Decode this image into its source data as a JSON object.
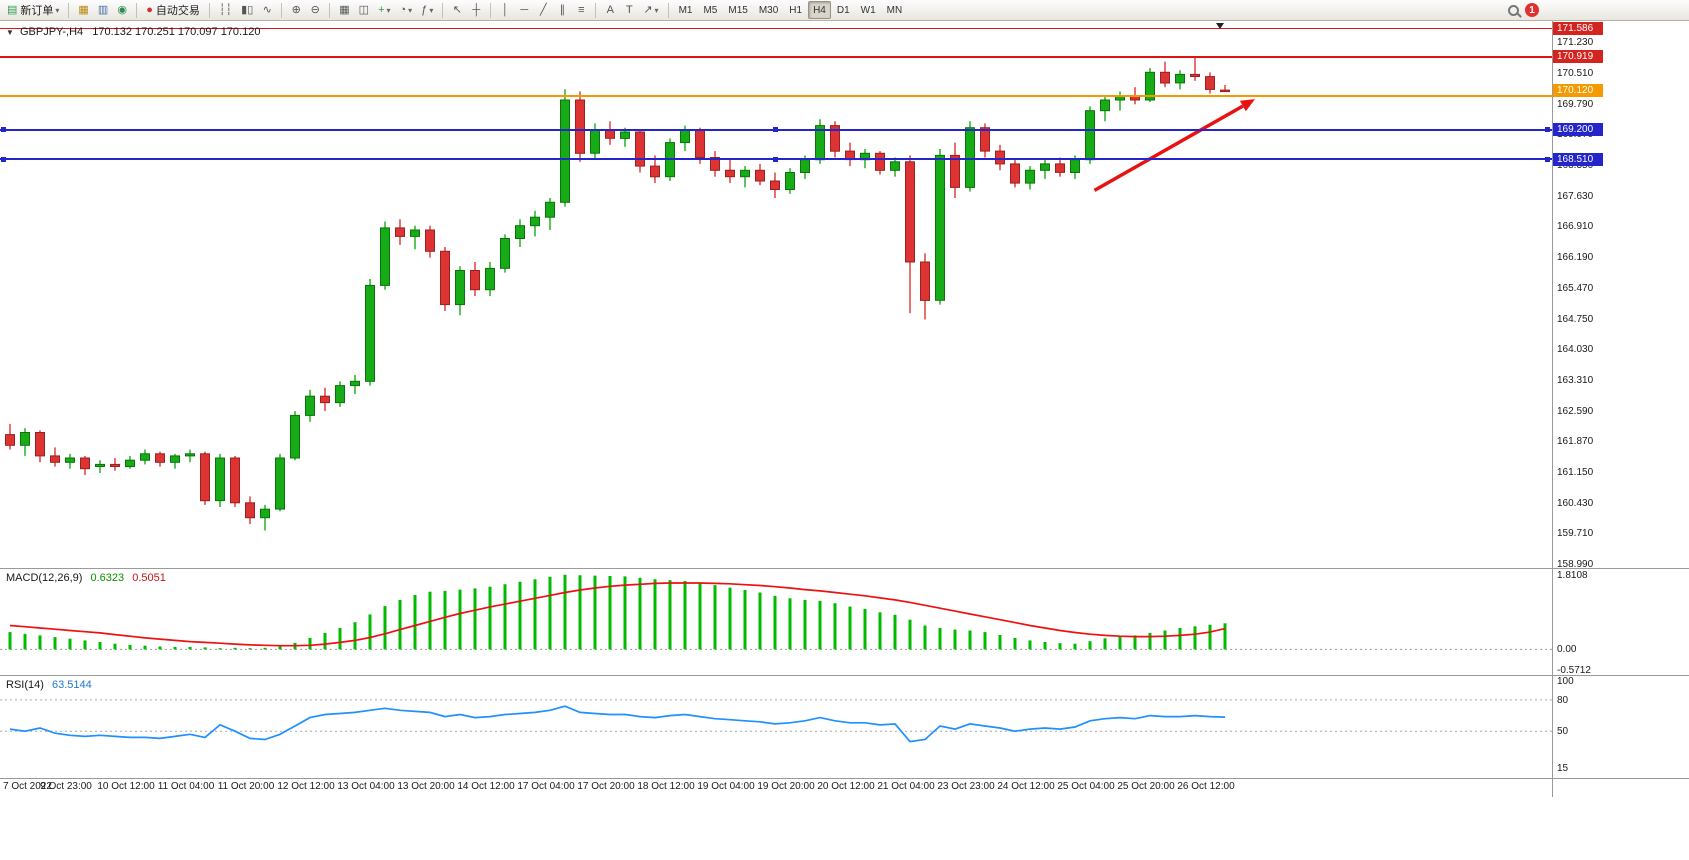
{
  "toolbar": {
    "groups": [
      [
        {
          "name": "new-order",
          "glyph": "▤",
          "glyph_color": "#2e9e4f",
          "label": "新订单",
          "caret": true
        }
      ],
      [
        {
          "name": "charts",
          "glyph": "▦",
          "glyph_color": "#b8860b"
        },
        {
          "name": "print",
          "glyph": "▥",
          "glyph_color": "#4a6fa5"
        },
        {
          "name": "market-watch",
          "glyph": "◉",
          "glyph_color": "#2e8b57"
        }
      ],
      [
        {
          "name": "autotrading",
          "glyph": "●",
          "glyph_color": "#d03030",
          "label": "自动交易"
        }
      ],
      [
        {
          "name": "bar-chart",
          "glyph": "┆┆"
        },
        {
          "name": "candlestick-chart",
          "glyph": "▮▯"
        },
        {
          "name": "line-chart",
          "glyph": "∿"
        }
      ],
      [
        {
          "name": "zoom-in",
          "glyph": "⊕"
        },
        {
          "name": "zoom-out",
          "glyph": "⊖"
        }
      ],
      [
        {
          "name": "tile-windows",
          "glyph": "▦"
        },
        {
          "name": "arrange-charts",
          "glyph": "◫"
        },
        {
          "name": "new-chart",
          "glyph": "+",
          "glyph_color": "#2e9e4f",
          "caret": true
        },
        {
          "name": "chart-period",
          "glyph": "◔",
          "caret": true
        },
        {
          "name": "indicators",
          "glyph": "ƒ",
          "caret": true
        }
      ],
      [
        {
          "name": "cursor",
          "glyph": "↖"
        },
        {
          "name": "crosshair",
          "glyph": "┼"
        }
      ],
      [
        {
          "name": "vertical-line",
          "glyph": "│"
        },
        {
          "name": "horizontal-line",
          "glyph": "─"
        },
        {
          "name": "trendline",
          "glyph": "╱"
        },
        {
          "name": "equidistant-channel",
          "glyph": "∥"
        },
        {
          "name": "fibonacci",
          "glyph": "≡"
        }
      ],
      [
        {
          "name": "text",
          "glyph": "A"
        },
        {
          "name": "text-label",
          "glyph": "T"
        },
        {
          "name": "arrows",
          "glyph": "↗",
          "caret": true
        }
      ]
    ],
    "timeframes": [
      "M1",
      "M5",
      "M15",
      "M30",
      "H1",
      "H4",
      "D1",
      "W1",
      "MN"
    ],
    "active_timeframe": "H4",
    "notification_badge": "1"
  },
  "chart_header": {
    "symbol_period": "GBPJPY-,H4",
    "ohlc_quote": "170.132 170.251 170.097 170.120"
  },
  "indicators": {
    "macd_label": "MACD(12,26,9)",
    "macd_value": "0.6323",
    "macd_signal": "0.5051",
    "rsi_label": "RSI(14)",
    "rsi_value": "63.5144"
  },
  "axes": {
    "price_labels": [
      "171.230",
      "170.510",
      "169.790",
      "169.070",
      "168.350",
      "167.630",
      "166.910",
      "166.190",
      "165.470",
      "164.750",
      "164.030",
      "163.310",
      "162.590",
      "161.870",
      "161.150",
      "160.430",
      "159.710",
      "158.990"
    ],
    "macd_scale_labels": [
      "1.8108",
      "0.00",
      "-0.5712"
    ],
    "rsi_scale_labels": [
      "100",
      "80",
      "50",
      "15"
    ],
    "time_labels": [
      "7 Oct 2022",
      "9 Oct 23:00",
      "10 Oct 12:00",
      "11 Oct 04:00",
      "11 Oct 20:00",
      "12 Oct 12:00",
      "13 Oct 04:00",
      "13 Oct 20:00",
      "14 Oct 12:00",
      "17 Oct 04:00",
      "17 Oct 20:00",
      "18 Oct 12:00",
      "19 Oct 04:00",
      "19 Oct 20:00",
      "20 Oct 12:00",
      "21 Oct 04:00",
      "23 Oct 23:00",
      "24 Oct 12:00",
      "25 Oct 04:00",
      "25 Oct 20:00",
      "26 Oct 12:00"
    ]
  },
  "price_tags": [
    {
      "label": "171.586",
      "price": 171.586,
      "color": "#d42420"
    },
    {
      "label": "170.919",
      "price": 170.919,
      "color": "#d42420"
    },
    {
      "label": "170.120",
      "price": 170.12,
      "color": "#f59a00"
    },
    {
      "label": "169.200",
      "price": 169.2,
      "color": "#2525cc"
    },
    {
      "label": "168.510",
      "price": 168.51,
      "color": "#2525cc"
    }
  ],
  "chart_data": {
    "type": "candlestick",
    "symbol": "GBPJPY-",
    "timeframe": "H4",
    "title": "GBPJPY-,H4 170.132 170.251 170.097 170.120",
    "price_range": [
      158.92,
      171.73
    ],
    "ohlc": [
      [
        162.05,
        162.3,
        161.7,
        161.8
      ],
      [
        161.8,
        162.2,
        161.55,
        162.1
      ],
      [
        162.1,
        162.15,
        161.4,
        161.55
      ],
      [
        161.55,
        161.75,
        161.3,
        161.4
      ],
      [
        161.4,
        161.6,
        161.25,
        161.5
      ],
      [
        161.5,
        161.55,
        161.1,
        161.25
      ],
      [
        161.3,
        161.45,
        161.15,
        161.35
      ],
      [
        161.35,
        161.5,
        161.2,
        161.3
      ],
      [
        161.3,
        161.55,
        161.25,
        161.45
      ],
      [
        161.45,
        161.7,
        161.35,
        161.6
      ],
      [
        161.6,
        161.65,
        161.3,
        161.4
      ],
      [
        161.4,
        161.6,
        161.25,
        161.55
      ],
      [
        161.55,
        161.7,
        161.4,
        161.6
      ],
      [
        161.6,
        161.65,
        160.4,
        160.5
      ],
      [
        160.5,
        161.6,
        160.35,
        161.5
      ],
      [
        161.5,
        161.55,
        160.35,
        160.45
      ],
      [
        160.45,
        160.6,
        159.95,
        160.1
      ],
      [
        160.1,
        160.4,
        159.8,
        160.3
      ],
      [
        160.3,
        161.6,
        160.25,
        161.5
      ],
      [
        161.5,
        162.6,
        161.45,
        162.5
      ],
      [
        162.5,
        163.1,
        162.35,
        162.95
      ],
      [
        162.95,
        163.15,
        162.6,
        162.8
      ],
      [
        162.8,
        163.3,
        162.7,
        163.2
      ],
      [
        163.2,
        163.45,
        163.0,
        163.3
      ],
      [
        163.3,
        165.7,
        163.2,
        165.55
      ],
      [
        165.55,
        167.05,
        165.45,
        166.9
      ],
      [
        166.9,
        167.1,
        166.5,
        166.7
      ],
      [
        166.7,
        166.95,
        166.4,
        166.85
      ],
      [
        166.85,
        166.95,
        166.2,
        166.35
      ],
      [
        166.35,
        166.45,
        164.95,
        165.1
      ],
      [
        165.1,
        166.0,
        164.85,
        165.9
      ],
      [
        165.9,
        166.1,
        165.3,
        165.45
      ],
      [
        165.45,
        166.1,
        165.3,
        165.95
      ],
      [
        165.95,
        166.75,
        165.85,
        166.65
      ],
      [
        166.65,
        167.1,
        166.45,
        166.95
      ],
      [
        166.95,
        167.3,
        166.7,
        167.15
      ],
      [
        167.15,
        167.6,
        166.85,
        167.5
      ],
      [
        167.5,
        170.15,
        167.4,
        169.9
      ],
      [
        169.9,
        170.1,
        168.45,
        168.65
      ],
      [
        168.65,
        169.35,
        168.5,
        169.2
      ],
      [
        169.2,
        169.4,
        168.85,
        169.0
      ],
      [
        169.0,
        169.25,
        168.8,
        169.15
      ],
      [
        169.15,
        169.2,
        168.2,
        168.35
      ],
      [
        168.35,
        168.6,
        167.95,
        168.1
      ],
      [
        168.1,
        169.0,
        168.0,
        168.9
      ],
      [
        168.9,
        169.3,
        168.7,
        169.2
      ],
      [
        169.2,
        169.25,
        168.4,
        168.55
      ],
      [
        168.55,
        168.7,
        168.1,
        168.25
      ],
      [
        168.25,
        168.5,
        167.95,
        168.1
      ],
      [
        168.1,
        168.35,
        167.85,
        168.25
      ],
      [
        168.25,
        168.4,
        167.9,
        168.0
      ],
      [
        168.0,
        168.2,
        167.6,
        167.8
      ],
      [
        167.8,
        168.3,
        167.7,
        168.2
      ],
      [
        168.2,
        168.6,
        168.05,
        168.5
      ],
      [
        168.5,
        169.45,
        168.4,
        169.3
      ],
      [
        169.3,
        169.4,
        168.55,
        168.7
      ],
      [
        168.7,
        168.9,
        168.35,
        168.5
      ],
      [
        168.5,
        168.75,
        168.3,
        168.65
      ],
      [
        168.65,
        168.7,
        168.15,
        168.25
      ],
      [
        168.25,
        168.55,
        168.1,
        168.45
      ],
      [
        168.45,
        168.6,
        164.9,
        166.1
      ],
      [
        166.1,
        166.3,
        164.75,
        165.2
      ],
      [
        165.2,
        168.75,
        165.1,
        168.6
      ],
      [
        168.6,
        168.9,
        167.6,
        167.85
      ],
      [
        167.85,
        169.4,
        167.75,
        169.25
      ],
      [
        169.25,
        169.35,
        168.55,
        168.7
      ],
      [
        168.7,
        168.85,
        168.25,
        168.4
      ],
      [
        168.4,
        168.5,
        167.85,
        167.95
      ],
      [
        167.95,
        168.35,
        167.8,
        168.25
      ],
      [
        168.25,
        168.5,
        168.05,
        168.4
      ],
      [
        168.4,
        168.55,
        168.1,
        168.2
      ],
      [
        168.2,
        168.6,
        168.05,
        168.5
      ],
      [
        168.5,
        169.75,
        168.4,
        169.65
      ],
      [
        169.65,
        170.0,
        169.4,
        169.9
      ],
      [
        169.9,
        170.1,
        169.65,
        170.0
      ],
      [
        170.0,
        170.2,
        169.8,
        169.9
      ],
      [
        169.9,
        170.65,
        169.85,
        170.55
      ],
      [
        170.55,
        170.8,
        170.2,
        170.3
      ],
      [
        170.3,
        170.6,
        170.15,
        170.5
      ],
      [
        170.5,
        170.9,
        170.35,
        170.45
      ],
      [
        170.45,
        170.55,
        170.05,
        170.15
      ],
      [
        170.132,
        170.251,
        170.097,
        170.12
      ]
    ],
    "levels": [
      {
        "price": 171.586,
        "color": "#dd1510",
        "width": 1,
        "handles": false
      },
      {
        "price": 170.919,
        "color": "#dd1510",
        "width": 2,
        "handles": false
      },
      {
        "price": 169.99,
        "color": "#f59a00",
        "width": 2,
        "handles": false
      },
      {
        "price": 169.2,
        "color": "#2525cc",
        "width": 2,
        "handles": true
      },
      {
        "price": 168.51,
        "color": "#2525cc",
        "width": 2,
        "handles": true
      }
    ],
    "trend_arrow": {
      "from_bar": 72.3,
      "from_price": 167.78,
      "to_bar": 83,
      "to_price": 169.92,
      "color": "#e81212"
    },
    "macd": {
      "params": "12,26,9",
      "value": 0.6323,
      "signal_value": 0.5051,
      "range": [
        -0.62,
        1.95
      ],
      "histogram": [
        0.42,
        0.38,
        0.34,
        0.3,
        0.26,
        0.22,
        0.18,
        0.14,
        0.11,
        0.09,
        0.07,
        0.06,
        0.06,
        0.05,
        0.03,
        0.04,
        0.03,
        0.04,
        0.08,
        0.16,
        0.28,
        0.4,
        0.52,
        0.66,
        0.85,
        1.05,
        1.2,
        1.32,
        1.4,
        1.42,
        1.45,
        1.48,
        1.52,
        1.58,
        1.64,
        1.7,
        1.76,
        1.81,
        1.8,
        1.79,
        1.78,
        1.77,
        1.74,
        1.7,
        1.68,
        1.66,
        1.62,
        1.56,
        1.5,
        1.44,
        1.38,
        1.3,
        1.24,
        1.2,
        1.18,
        1.12,
        1.04,
        0.98,
        0.9,
        0.84,
        0.72,
        0.58,
        0.52,
        0.48,
        0.46,
        0.42,
        0.35,
        0.28,
        0.22,
        0.18,
        0.15,
        0.14,
        0.2,
        0.27,
        0.32,
        0.34,
        0.4,
        0.46,
        0.52,
        0.56,
        0.6,
        0.6323
      ],
      "signal": [
        0.58,
        0.55,
        0.52,
        0.49,
        0.46,
        0.43,
        0.4,
        0.36,
        0.32,
        0.28,
        0.25,
        0.22,
        0.19,
        0.17,
        0.15,
        0.13,
        0.11,
        0.1,
        0.09,
        0.09,
        0.1,
        0.13,
        0.17,
        0.22,
        0.29,
        0.38,
        0.48,
        0.58,
        0.68,
        0.78,
        0.87,
        0.95,
        1.03,
        1.1,
        1.17,
        1.24,
        1.31,
        1.38,
        1.44,
        1.49,
        1.53,
        1.56,
        1.58,
        1.6,
        1.61,
        1.61,
        1.61,
        1.6,
        1.59,
        1.57,
        1.55,
        1.52,
        1.49,
        1.45,
        1.42,
        1.38,
        1.34,
        1.3,
        1.25,
        1.2,
        1.14,
        1.07,
        1.0,
        0.93,
        0.86,
        0.79,
        0.72,
        0.65,
        0.58,
        0.52,
        0.46,
        0.41,
        0.37,
        0.34,
        0.32,
        0.31,
        0.31,
        0.32,
        0.34,
        0.37,
        0.42,
        0.5051
      ]
    },
    "rsi": {
      "period": 14,
      "value": 63.5144,
      "range": [
        5,
        103
      ],
      "levels": [
        80,
        50
      ],
      "values": [
        52,
        50,
        53,
        48,
        46,
        45,
        46,
        45,
        44,
        44,
        43,
        45,
        47,
        44,
        56,
        50,
        43,
        42,
        47,
        55,
        63,
        66,
        67,
        68,
        70,
        72,
        70,
        69,
        68,
        64,
        66,
        63,
        64,
        66,
        67,
        68,
        70,
        74,
        68,
        67,
        66,
        66,
        64,
        63,
        65,
        66,
        64,
        62,
        61,
        60,
        59,
        57,
        58,
        60,
        63,
        60,
        58,
        58,
        56,
        57,
        40,
        42,
        55,
        52,
        57,
        55,
        53,
        50,
        52,
        53,
        52,
        54,
        60,
        62,
        63,
        62,
        65,
        64,
        64,
        65,
        64,
        63.51
      ]
    }
  }
}
